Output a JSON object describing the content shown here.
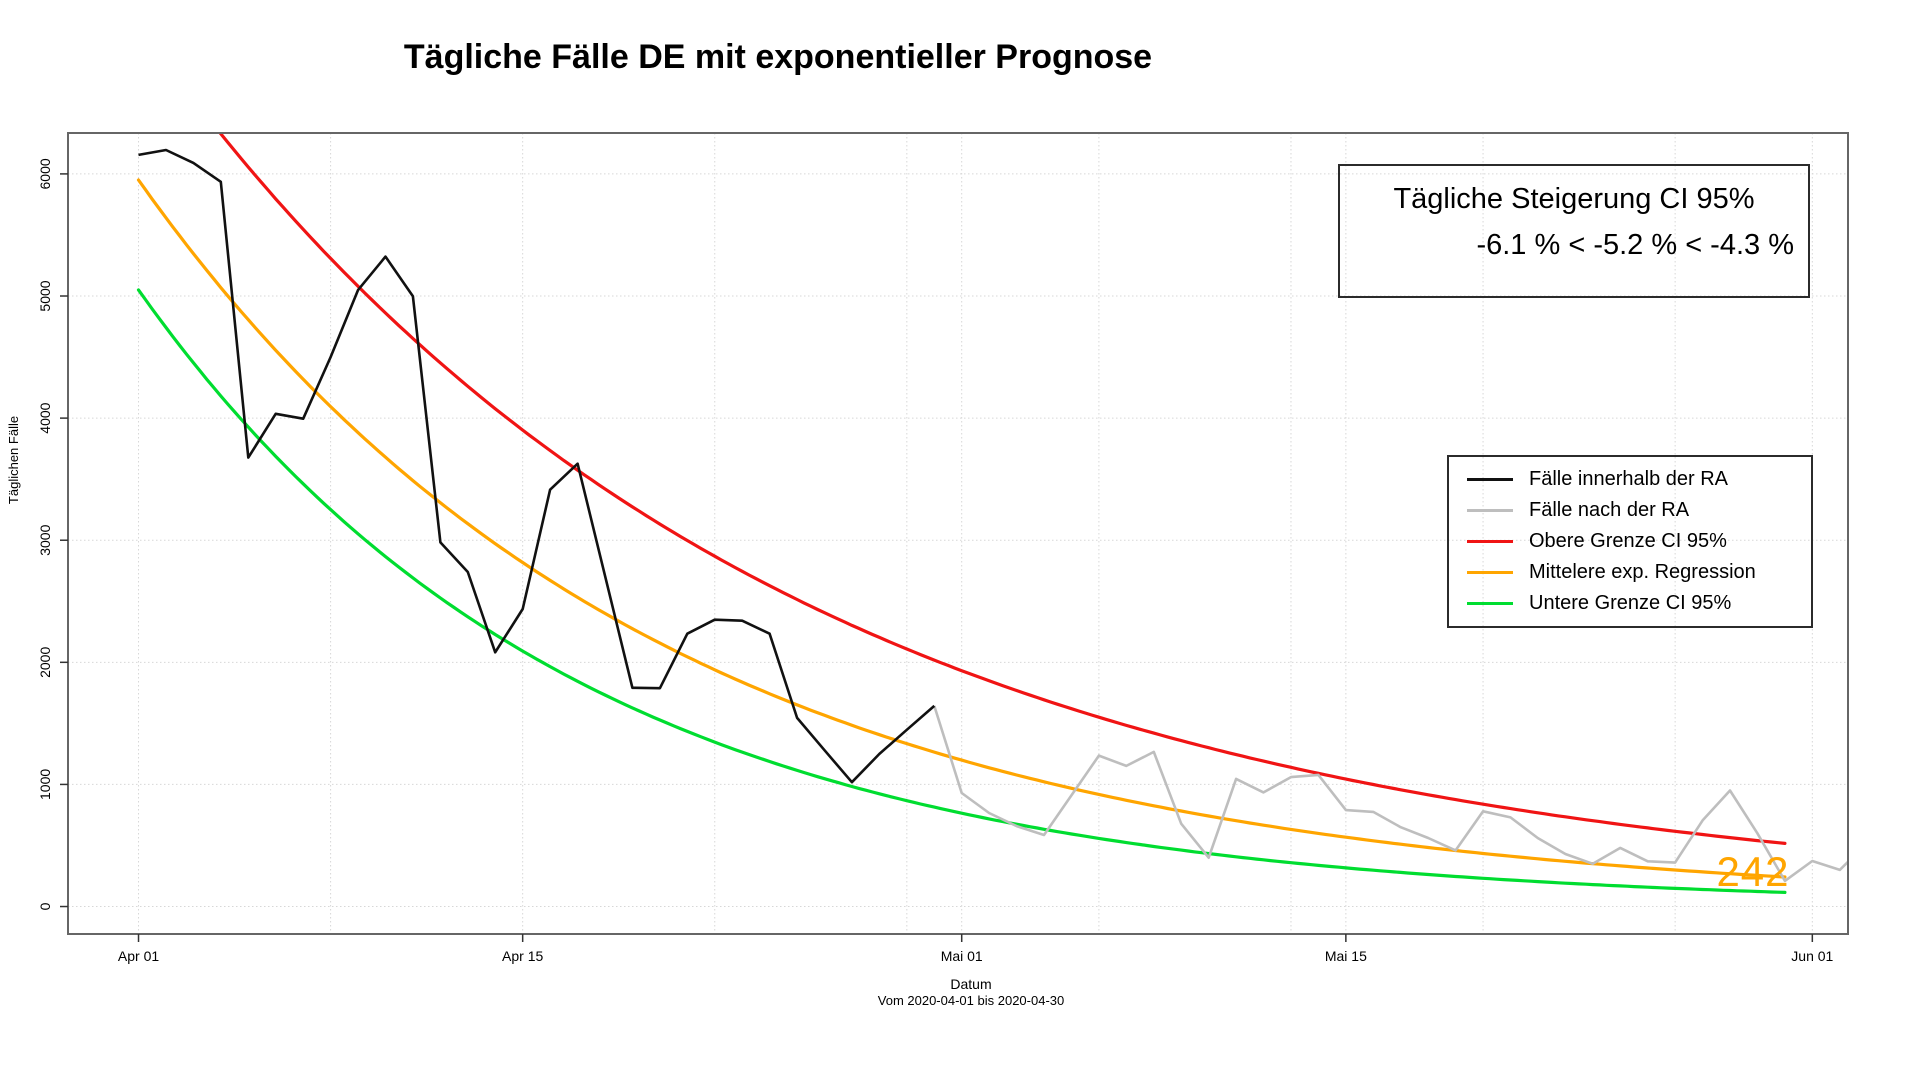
{
  "title": "Tägliche Fälle DE mit exponentieller Prognose",
  "ci_box": {
    "line1": "Tägliche Steigerung CI 95%",
    "line2": "-6.1 % < -5.2 % < -4.3 %"
  },
  "legend": {
    "items": [
      {
        "label": "Fälle innerhalb der RA",
        "color": "#111111"
      },
      {
        "label": "Fälle nach der RA",
        "color": "#BEBEBE"
      },
      {
        "label": "Obere Grenze CI 95%",
        "color": "#F01414"
      },
      {
        "label": "Mittelere exp. Regression",
        "color": "#FFA500"
      },
      {
        "label": "Untere Grenze CI 95%",
        "color": "#00DD30"
      }
    ]
  },
  "end_label": {
    "text": "242",
    "color": "#FFA500"
  },
  "chart_data": {
    "type": "line",
    "title": "Tägliche Fälle DE mit exponentieller Prognose",
    "x_axis": {
      "label": "Datum",
      "sublabel": "Vom 2020-04-01 bis 2020-04-30",
      "start_date": "2020-04-01",
      "ticks": [
        {
          "day": 0,
          "label": "Apr 01"
        },
        {
          "day": 14,
          "label": "Apr 15"
        },
        {
          "day": 30,
          "label": "Mai 01"
        },
        {
          "day": 44,
          "label": "Mai 15"
        },
        {
          "day": 61,
          "label": "Jun 01"
        }
      ],
      "grid_days": [
        0,
        7,
        14,
        21,
        28,
        30,
        35,
        42,
        44,
        49,
        56,
        61
      ],
      "domain_days": [
        -2.57,
        62.3
      ]
    },
    "y_axis": {
      "label": "Täglichen Fälle",
      "ticks": [
        0,
        1000,
        2000,
        3000,
        4000,
        5000,
        6000
      ],
      "domain": [
        -225,
        6335
      ],
      "grid": true
    },
    "series": [
      {
        "name": "Fälle innerhalb der RA",
        "color": "#111111",
        "days": [
          0,
          1,
          2,
          3,
          4,
          5,
          6,
          7,
          8,
          9,
          10,
          11,
          12,
          13,
          14,
          15,
          16,
          17,
          18,
          19,
          20,
          21,
          22,
          23,
          24,
          25,
          26,
          27,
          28,
          29
        ],
        "values": [
          6156,
          6196,
          6090,
          5935,
          3677,
          4035,
          3995,
          4500,
          5048,
          5323,
          4998,
          2982,
          2740,
          2082,
          2437,
          3414,
          3627,
          2709,
          1791,
          1788,
          2234,
          2349,
          2341,
          2234,
          1545,
          1280,
          1018,
          1250,
          1447,
          1643
        ]
      },
      {
        "name": "Fälle nach der RA",
        "color": "#BEBEBE",
        "days": [
          29,
          30,
          31,
          32,
          33,
          34,
          35,
          36,
          37,
          38,
          39,
          40,
          41,
          42,
          43,
          44,
          45,
          46,
          47,
          48,
          49,
          50,
          51,
          52,
          53,
          54,
          55,
          56,
          57,
          58,
          59,
          60,
          61,
          62,
          63
        ],
        "values": [
          1643,
          930,
          766,
          659,
          586,
          911,
          1236,
          1152,
          1266,
          678,
          400,
          1045,
          935,
          1060,
          1078,
          790,
          775,
          650,
          561,
          460,
          780,
          730,
          560,
          430,
          350,
          480,
          370,
          360,
          705,
          950,
          600,
          210,
          373,
          300,
          520
        ]
      }
    ],
    "curves": [
      {
        "name": "Obere Grenze CI 95%",
        "color": "#F01414",
        "start_value": 7220,
        "daily_rate_pct": -4.3,
        "day_range": [
          0,
          60
        ],
        "end_value": 517
      },
      {
        "name": "Mittelere exp. Regression",
        "color": "#FFA500",
        "start_value": 5950,
        "daily_rate_pct": -5.2,
        "day_range": [
          0,
          60
        ],
        "end_value": 242
      },
      {
        "name": "Untere Grenze CI 95%",
        "color": "#00DD30",
        "start_value": 5050,
        "daily_rate_pct": -6.1,
        "day_range": [
          0,
          60
        ],
        "end_value": 116
      }
    ],
    "legend_position": "right-middle",
    "annotation": {
      "title": "Tägliche Steigerung CI 95%",
      "value": "-6.1 % < -5.2 % < -4.3 %"
    },
    "end_annotation": "242"
  }
}
